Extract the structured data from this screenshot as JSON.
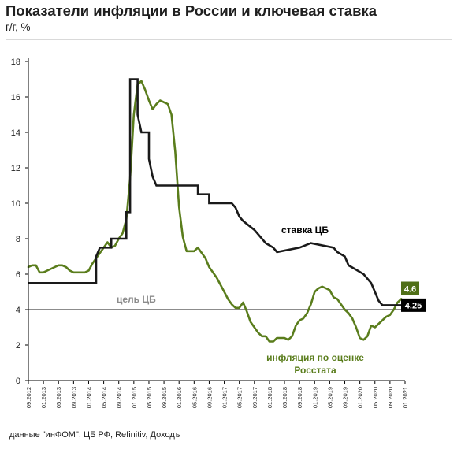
{
  "title": "Показатели  инфляции в России и ключевая  ставка",
  "subtitle": "г/г, %",
  "source": "данные \"инФОМ\", ЦБ РФ, Refinitiv, Доходъ",
  "colors": {
    "rate": "#1a1a1a",
    "inflation": "#5a7d1c",
    "target": "#8c8c8c",
    "axis": "#000000",
    "label_rate_bg": "#000000",
    "label_infl_bg": "#4f6f17"
  },
  "chart_data": {
    "type": "line",
    "title": "Показатели  инфляции в России и ключевая  ставка",
    "ylabel": "г/г, %",
    "xlabel": "",
    "ylim": [
      0,
      18
    ],
    "xlim": [
      "2012-09",
      "2021-01"
    ],
    "yticks": [
      0,
      2,
      4,
      6,
      8,
      10,
      12,
      14,
      16,
      18
    ],
    "xticks": [
      "09.2012",
      "01.2013",
      "05.2013",
      "09.2013",
      "01.2014",
      "05.2014",
      "09.2014",
      "01.2015",
      "05.2015",
      "09.2015",
      "01.2016",
      "05.2016",
      "09.2016",
      "01.2017",
      "05.2017",
      "09.2017",
      "01.2018",
      "05.2018",
      "09.2018",
      "01.2019",
      "05.2019",
      "09.2019",
      "01.2020",
      "05.2020",
      "09.2020",
      "01.2021"
    ],
    "grid": false,
    "target": {
      "name": "цель ЦБ",
      "value": 4
    },
    "series": [
      {
        "name": "ставка ЦБ",
        "values_at_end": "4.25",
        "points": [
          [
            "2012-09",
            5.5
          ],
          [
            "2014-03",
            5.5
          ],
          [
            "2014-03",
            7.0
          ],
          [
            "2014-04",
            7.5
          ],
          [
            "2014-07",
            7.5
          ],
          [
            "2014-07",
            8.0
          ],
          [
            "2014-11",
            8.0
          ],
          [
            "2014-11",
            9.5
          ],
          [
            "2014-12",
            9.5
          ],
          [
            "2014-12",
            17.0
          ],
          [
            "2015-02",
            17.0
          ],
          [
            "2015-02",
            15.0
          ],
          [
            "2015-03",
            14.0
          ],
          [
            "2015-05",
            14.0
          ],
          [
            "2015-05",
            12.5
          ],
          [
            "2015-06",
            11.5
          ],
          [
            "2015-07",
            11.0
          ],
          [
            "2016-06",
            11.0
          ],
          [
            "2016-06",
            10.5
          ],
          [
            "2016-09",
            10.5
          ],
          [
            "2016-09",
            10.0
          ],
          [
            "2017-03",
            10.0
          ],
          [
            "2017-04",
            9.75
          ],
          [
            "2017-05",
            9.25
          ],
          [
            "2017-06",
            9.0
          ],
          [
            "2017-09",
            8.5
          ],
          [
            "2017-10",
            8.25
          ],
          [
            "2017-12",
            7.75
          ],
          [
            "2018-02",
            7.5
          ],
          [
            "2018-03",
            7.25
          ],
          [
            "2018-09",
            7.5
          ],
          [
            "2018-12",
            7.75
          ],
          [
            "2019-06",
            7.5
          ],
          [
            "2019-07",
            7.25
          ],
          [
            "2019-09",
            7.0
          ],
          [
            "2019-10",
            6.5
          ],
          [
            "2019-12",
            6.25
          ],
          [
            "2020-02",
            6.0
          ],
          [
            "2020-04",
            5.5
          ],
          [
            "2020-06",
            4.5
          ],
          [
            "2020-07",
            4.25
          ],
          [
            "2021-01",
            4.25
          ]
        ]
      },
      {
        "name": "инфляция по оценке Росстата",
        "values_at_end": "4.6",
        "points": [
          [
            "2012-09",
            6.4
          ],
          [
            "2012-10",
            6.5
          ],
          [
            "2012-11",
            6.5
          ],
          [
            "2012-12",
            6.1
          ],
          [
            "2013-01",
            6.1
          ],
          [
            "2013-02",
            6.2
          ],
          [
            "2013-04",
            6.4
          ],
          [
            "2013-05",
            6.5
          ],
          [
            "2013-06",
            6.5
          ],
          [
            "2013-07",
            6.4
          ],
          [
            "2013-08",
            6.2
          ],
          [
            "2013-09",
            6.1
          ],
          [
            "2013-10",
            6.1
          ],
          [
            "2013-11",
            6.1
          ],
          [
            "2013-12",
            6.1
          ],
          [
            "2014-01",
            6.2
          ],
          [
            "2014-02",
            6.6
          ],
          [
            "2014-03",
            6.9
          ],
          [
            "2014-04",
            7.2
          ],
          [
            "2014-05",
            7.5
          ],
          [
            "2014-06",
            7.8
          ],
          [
            "2014-07",
            7.5
          ],
          [
            "2014-08",
            7.6
          ],
          [
            "2014-09",
            8.0
          ],
          [
            "2014-10",
            8.3
          ],
          [
            "2014-11",
            9.1
          ],
          [
            "2014-12",
            11.4
          ],
          [
            "2015-01",
            15.0
          ],
          [
            "2015-02",
            16.7
          ],
          [
            "2015-03",
            16.9
          ],
          [
            "2015-04",
            16.4
          ],
          [
            "2015-05",
            15.8
          ],
          [
            "2015-06",
            15.3
          ],
          [
            "2015-07",
            15.6
          ],
          [
            "2015-08",
            15.8
          ],
          [
            "2015-09",
            15.7
          ],
          [
            "2015-10",
            15.6
          ],
          [
            "2015-11",
            15.0
          ],
          [
            "2015-12",
            12.9
          ],
          [
            "2016-01",
            9.8
          ],
          [
            "2016-02",
            8.1
          ],
          [
            "2016-03",
            7.3
          ],
          [
            "2016-04",
            7.3
          ],
          [
            "2016-05",
            7.3
          ],
          [
            "2016-06",
            7.5
          ],
          [
            "2016-07",
            7.2
          ],
          [
            "2016-08",
            6.9
          ],
          [
            "2016-09",
            6.4
          ],
          [
            "2016-10",
            6.1
          ],
          [
            "2016-11",
            5.8
          ],
          [
            "2016-12",
            5.4
          ],
          [
            "2017-01",
            5.0
          ],
          [
            "2017-02",
            4.6
          ],
          [
            "2017-03",
            4.3
          ],
          [
            "2017-04",
            4.1
          ],
          [
            "2017-05",
            4.1
          ],
          [
            "2017-06",
            4.4
          ],
          [
            "2017-07",
            3.9
          ],
          [
            "2017-08",
            3.3
          ],
          [
            "2017-09",
            3.0
          ],
          [
            "2017-10",
            2.7
          ],
          [
            "2017-11",
            2.5
          ],
          [
            "2017-12",
            2.5
          ],
          [
            "2018-01",
            2.2
          ],
          [
            "2018-02",
            2.2
          ],
          [
            "2018-03",
            2.4
          ],
          [
            "2018-04",
            2.4
          ],
          [
            "2018-05",
            2.4
          ],
          [
            "2018-06",
            2.3
          ],
          [
            "2018-07",
            2.5
          ],
          [
            "2018-08",
            3.1
          ],
          [
            "2018-09",
            3.4
          ],
          [
            "2018-10",
            3.5
          ],
          [
            "2018-11",
            3.8
          ],
          [
            "2018-12",
            4.3
          ],
          [
            "2019-01",
            5.0
          ],
          [
            "2019-02",
            5.2
          ],
          [
            "2019-03",
            5.3
          ],
          [
            "2019-04",
            5.2
          ],
          [
            "2019-05",
            5.1
          ],
          [
            "2019-06",
            4.7
          ],
          [
            "2019-07",
            4.6
          ],
          [
            "2019-08",
            4.3
          ],
          [
            "2019-09",
            4.0
          ],
          [
            "2019-10",
            3.8
          ],
          [
            "2019-11",
            3.5
          ],
          [
            "2019-12",
            3.0
          ],
          [
            "2020-01",
            2.4
          ],
          [
            "2020-02",
            2.3
          ],
          [
            "2020-03",
            2.5
          ],
          [
            "2020-04",
            3.1
          ],
          [
            "2020-05",
            3.0
          ],
          [
            "2020-06",
            3.2
          ],
          [
            "2020-07",
            3.4
          ],
          [
            "2020-08",
            3.6
          ],
          [
            "2020-09",
            3.7
          ],
          [
            "2020-10",
            4.0
          ],
          [
            "2020-11",
            4.4
          ],
          [
            "2020-12",
            4.6
          ]
        ]
      }
    ],
    "annotations": [
      {
        "text": "ставка ЦБ",
        "series": "ставка ЦБ"
      },
      {
        "text": "инфляция по оценке",
        "series": "инфляция по оценке Росстата"
      },
      {
        "text": "Росстата",
        "series": "инфляция по оценке Росстата"
      },
      {
        "text": "цель ЦБ",
        "series": "target"
      }
    ]
  }
}
